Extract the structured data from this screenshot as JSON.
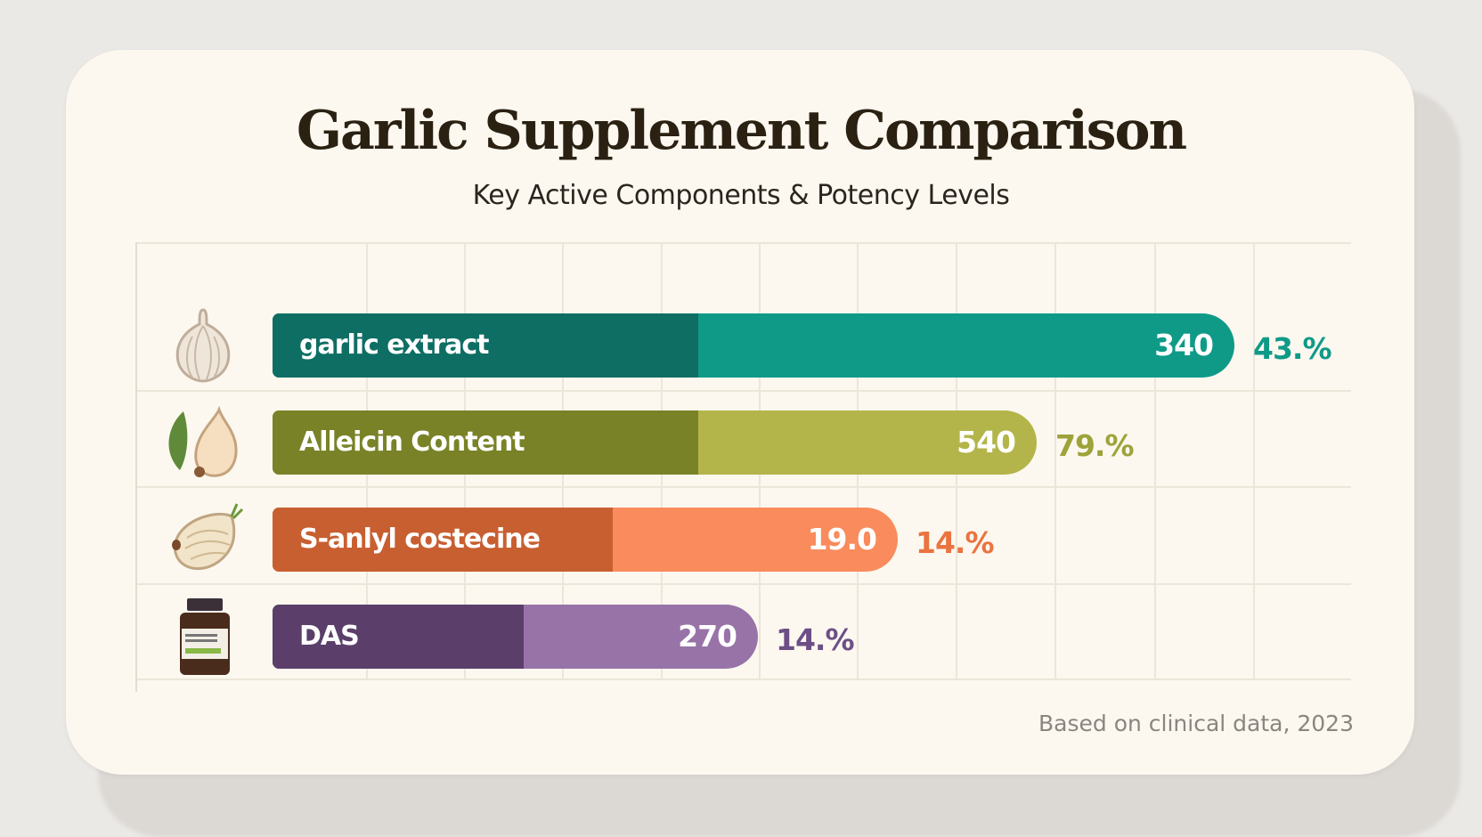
{
  "title": "Garlic Supplement Comparison",
  "subtitle": "Key Active Components & Potency Levels",
  "footnote": "Based on clinical data, 2023",
  "chart_data": {
    "type": "bar",
    "orientation": "horizontal",
    "title": "Garlic Supplement Comparison",
    "subtitle": "Key Active Components & Potency Levels",
    "categories": [
      "garlic extract",
      "Alleicin Content",
      "S-anlyl costecine",
      "DAS"
    ],
    "values": [
      "340",
      "540",
      "19.0",
      "270"
    ],
    "percentages": [
      "43.%",
      "79.%",
      "14.%",
      "14.%"
    ],
    "icons": [
      "garlic-bulb-icon",
      "garlic-clove-leaf-icon",
      "onion-icon",
      "supplement-bottle-icon"
    ],
    "colors": {
      "dark": [
        "#0f6e64",
        "#7a8228",
        "#c85f30",
        "#5b3f6a"
      ],
      "light": [
        "#0f9a88",
        "#b3b54a",
        "#f98b5c",
        "#9873a8"
      ],
      "percent": [
        "#0f9a88",
        "#9da33a",
        "#ea7440",
        "#6d4f86"
      ]
    },
    "grid": true,
    "legend": "none"
  }
}
